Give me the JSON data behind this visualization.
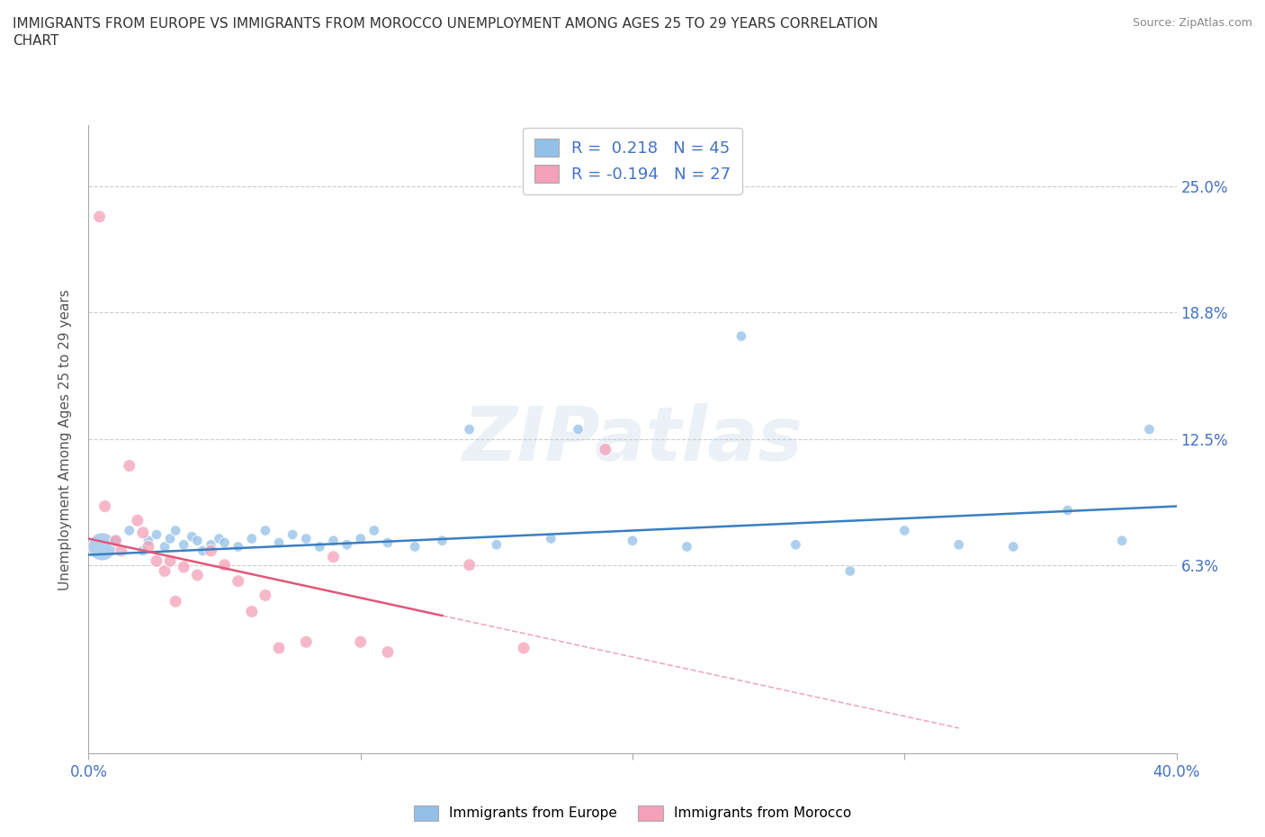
{
  "title": "IMMIGRANTS FROM EUROPE VS IMMIGRANTS FROM MOROCCO UNEMPLOYMENT AMONG AGES 25 TO 29 YEARS CORRELATION\nCHART",
  "source": "Source: ZipAtlas.com",
  "ylabel": "Unemployment Among Ages 25 to 29 years",
  "xlim": [
    0.0,
    0.4
  ],
  "ylim": [
    -0.03,
    0.28
  ],
  "yticks": [
    0.063,
    0.125,
    0.188,
    0.25
  ],
  "ytick_labels": [
    "6.3%",
    "12.5%",
    "18.8%",
    "25.0%"
  ],
  "xticks": [
    0.0,
    0.1,
    0.2,
    0.3,
    0.4
  ],
  "xtick_labels": [
    "0.0%",
    "",
    "",
    "",
    "40.0%"
  ],
  "europe_color": "#92c0e8",
  "morocco_color": "#f4a0b8",
  "europe_R": 0.218,
  "europe_N": 45,
  "morocco_R": -0.194,
  "morocco_N": 27,
  "europe_line_color": "#3a7fc1",
  "morocco_line_color": "#e05878",
  "watermark": "ZIPatlas",
  "europe_scatter_x": [
    0.005,
    0.01,
    0.015,
    0.02,
    0.022,
    0.025,
    0.028,
    0.03,
    0.032,
    0.035,
    0.038,
    0.04,
    0.042,
    0.045,
    0.048,
    0.05,
    0.055,
    0.06,
    0.065,
    0.07,
    0.075,
    0.08,
    0.085,
    0.09,
    0.095,
    0.1,
    0.105,
    0.11,
    0.12,
    0.13,
    0.14,
    0.15,
    0.17,
    0.18,
    0.2,
    0.22,
    0.24,
    0.26,
    0.28,
    0.3,
    0.32,
    0.34,
    0.36,
    0.38,
    0.39
  ],
  "europe_scatter_y": [
    0.072,
    0.075,
    0.08,
    0.07,
    0.075,
    0.078,
    0.072,
    0.076,
    0.08,
    0.073,
    0.077,
    0.075,
    0.07,
    0.073,
    0.076,
    0.074,
    0.072,
    0.076,
    0.08,
    0.074,
    0.078,
    0.076,
    0.072,
    0.075,
    0.073,
    0.076,
    0.08,
    0.074,
    0.072,
    0.075,
    0.13,
    0.073,
    0.076,
    0.13,
    0.075,
    0.072,
    0.176,
    0.073,
    0.06,
    0.08,
    0.073,
    0.072,
    0.09,
    0.075,
    0.13
  ],
  "europe_scatter_size": [
    500,
    70,
    70,
    70,
    70,
    70,
    70,
    70,
    70,
    70,
    70,
    70,
    70,
    70,
    70,
    70,
    70,
    70,
    70,
    70,
    70,
    70,
    70,
    70,
    70,
    70,
    70,
    70,
    70,
    70,
    70,
    70,
    70,
    70,
    70,
    70,
    70,
    70,
    70,
    70,
    70,
    70,
    70,
    70,
    70
  ],
  "morocco_scatter_x": [
    0.004,
    0.006,
    0.01,
    0.012,
    0.015,
    0.018,
    0.02,
    0.022,
    0.025,
    0.028,
    0.03,
    0.032,
    0.035,
    0.04,
    0.045,
    0.05,
    0.055,
    0.06,
    0.065,
    0.07,
    0.08,
    0.09,
    0.1,
    0.11,
    0.14,
    0.16,
    0.19
  ],
  "morocco_scatter_y": [
    0.235,
    0.092,
    0.075,
    0.07,
    0.112,
    0.085,
    0.079,
    0.072,
    0.065,
    0.06,
    0.065,
    0.045,
    0.062,
    0.058,
    0.07,
    0.063,
    0.055,
    0.04,
    0.048,
    0.022,
    0.025,
    0.067,
    0.025,
    0.02,
    0.063,
    0.022,
    0.12
  ],
  "morocco_scatter_size": [
    100,
    100,
    100,
    100,
    100,
    100,
    100,
    100,
    100,
    100,
    100,
    100,
    100,
    100,
    100,
    100,
    100,
    100,
    100,
    100,
    100,
    100,
    100,
    100,
    100,
    100,
    100
  ]
}
